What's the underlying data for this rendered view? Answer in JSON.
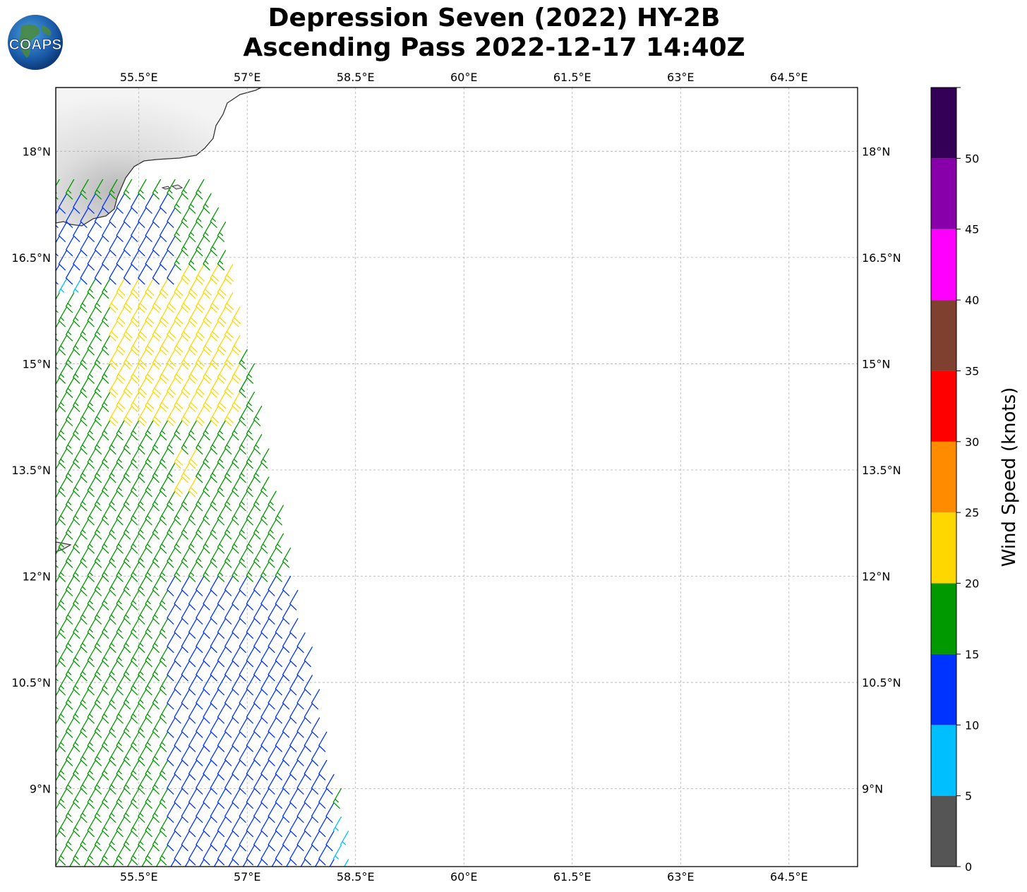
{
  "figure": {
    "title_line1": "Depression Seven (2022) HY-2B",
    "title_line2": "Ascending Pass 2022-12-17 14:40Z",
    "logo_text": "COAPS"
  },
  "map": {
    "lon_range": [
      54.35,
      65.45
    ],
    "lat_range": [
      7.9,
      18.9
    ],
    "lon_ticks": [
      "55.5°E",
      "57°E",
      "58.5°E",
      "60°E",
      "61.5°E",
      "63°E",
      "64.5°E"
    ],
    "lat_ticks": [
      "18°N",
      "16.5°N",
      "15°N",
      "13.5°N",
      "12°N",
      "10.5°N",
      "9°N"
    ],
    "grid": true,
    "land_color": "#e4e4e4",
    "coast_color": "#333333",
    "grid_color": "#b0b0b0"
  },
  "colorbar": {
    "label": "Wind Speed (knots)",
    "tick_labels": [
      "0",
      "5",
      "10",
      "15",
      "20",
      "25",
      "30",
      "35",
      "40",
      "45",
      "50"
    ],
    "bins": [
      {
        "min": 0,
        "max": 5,
        "color": "#555555"
      },
      {
        "min": 5,
        "max": 10,
        "color": "#00bfff"
      },
      {
        "min": 10,
        "max": 15,
        "color": "#0033ff"
      },
      {
        "min": 15,
        "max": 20,
        "color": "#009900"
      },
      {
        "min": 20,
        "max": 25,
        "color": "#ffd700"
      },
      {
        "min": 25,
        "max": 30,
        "color": "#ff8c00"
      },
      {
        "min": 30,
        "max": 35,
        "color": "#ff0000"
      },
      {
        "min": 35,
        "max": 40,
        "color": "#804030"
      },
      {
        "min": 40,
        "max": 45,
        "color": "#ff00ff"
      },
      {
        "min": 45,
        "max": 50,
        "color": "#8800aa"
      },
      {
        "min": 50,
        "max": 55,
        "color": "#330055"
      }
    ]
  },
  "chart_data": {
    "type": "wind-barbs",
    "swath": {
      "lat_min": 8.0,
      "lat_max": 17.6,
      "west_lon_at_lat_min": 54.4,
      "east_lon_at_lat_min": 58.5,
      "west_lon_at_lat_max": 54.4,
      "east_lon_at_lat_max": 56.6
    },
    "wind_direction_deg": 210,
    "speed_regions": [
      {
        "description": "Arabian coast near 16.5-17.5°N",
        "speed_kt": 13,
        "lat": [
          16.2,
          17.4
        ],
        "lon": [
          54.4,
          56.1
        ]
      },
      {
        "description": "far west near 16-16.7°N",
        "speed_kt": 8,
        "lat": [
          16.0,
          16.7
        ],
        "lon": [
          54.35,
          54.8
        ]
      },
      {
        "description": "central 14-16°N",
        "speed_kt": 22,
        "lat": [
          14.2,
          16.4
        ],
        "lon": [
          55.2,
          57.0
        ]
      },
      {
        "description": "patch near 13.5°N",
        "speed_kt": 22,
        "lat": [
          13.3,
          13.8
        ],
        "lon": [
          56.1,
          56.4
        ]
      },
      {
        "description": "southeast 8-12°N",
        "speed_kt": 13,
        "lat": [
          8.0,
          12.0
        ],
        "lon": [
          56.0,
          58.3
        ]
      },
      {
        "description": "swath edge near 8.3-8.6°N",
        "speed_kt": 8,
        "lat": [
          8.0,
          8.6
        ],
        "lon": [
          57.7,
          58.6
        ]
      },
      {
        "description": "background",
        "speed_kt": 17
      }
    ]
  }
}
